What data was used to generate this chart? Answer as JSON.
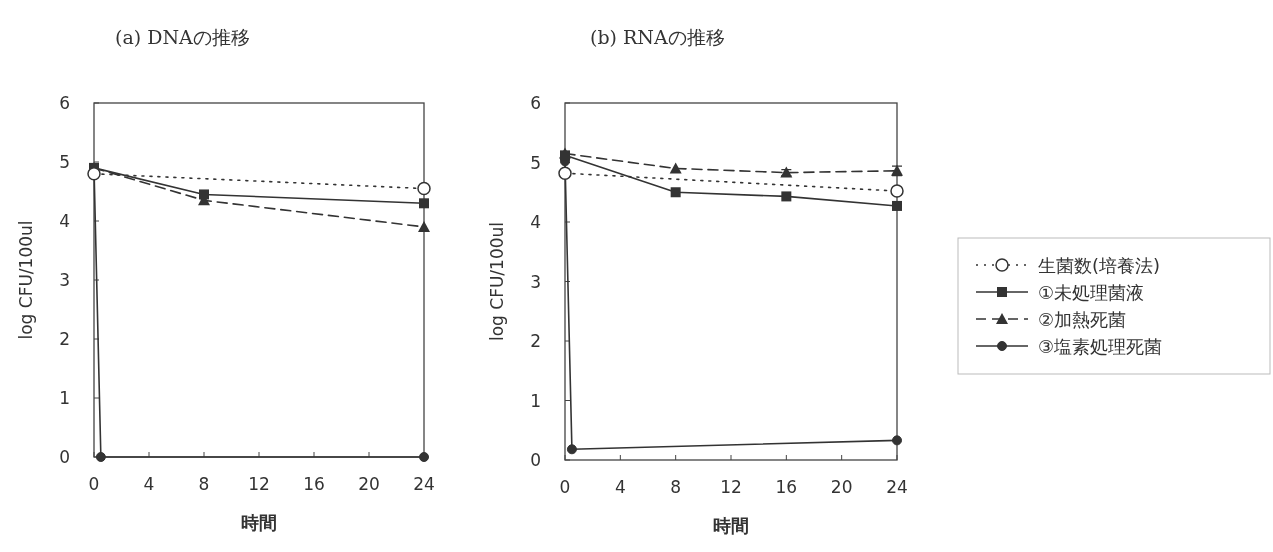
{
  "chart_data": [
    {
      "type": "line",
      "title": "(a) DNAの推移",
      "xlabel": "時間",
      "ylabel": "log CFU/100ul",
      "xlim": [
        0,
        24
      ],
      "ylim": [
        0,
        6
      ],
      "xticks": [
        0,
        4,
        8,
        12,
        16,
        20,
        24
      ],
      "yticks": [
        0,
        1,
        2,
        3,
        4,
        5,
        6
      ],
      "grid": false,
      "legend": false,
      "series": [
        {
          "color": "#333333",
          "marker": "circle-open",
          "line_style": "dotted",
          "x": [
            0,
            24
          ],
          "values": [
            4.8,
            4.55
          ]
        },
        {
          "color": "#333333",
          "marker": "square",
          "line_style": "solid",
          "x": [
            0,
            8,
            24
          ],
          "values": [
            4.9,
            4.45,
            4.3
          ]
        },
        {
          "color": "#333333",
          "marker": "triangle",
          "line_style": "dashed",
          "x": [
            0,
            8,
            24
          ],
          "values": [
            4.9,
            4.35,
            3.9
          ]
        },
        {
          "color": "#333333",
          "marker": "circle",
          "line_style": "solid",
          "x": [
            0,
            0.5,
            24
          ],
          "values": [
            4.9,
            0,
            0
          ]
        }
      ]
    },
    {
      "type": "line",
      "title": "(b) RNAの推移",
      "xlabel": "時間",
      "ylabel": "log CFU/100ul",
      "xlim": [
        0,
        24
      ],
      "ylim": [
        0,
        6
      ],
      "xticks": [
        0,
        4,
        8,
        12,
        16,
        20,
        24
      ],
      "yticks": [
        0,
        1,
        2,
        3,
        4,
        5,
        6
      ],
      "grid": false,
      "legend": "right",
      "series": [
        {
          "name": "生菌数(培養法)",
          "color": "#333333",
          "marker": "circle-open",
          "line_style": "dotted",
          "x": [
            0,
            24
          ],
          "values": [
            4.82,
            4.52
          ]
        },
        {
          "name": "①未処理菌液",
          "color": "#333333",
          "marker": "square",
          "line_style": "solid",
          "x": [
            0,
            8,
            16,
            24
          ],
          "values": [
            5.12,
            4.5,
            4.43,
            4.27
          ]
        },
        {
          "name": "②加熱死菌",
          "color": "#333333",
          "marker": "triangle",
          "line_style": "dashed",
          "x": [
            0,
            8,
            16,
            24
          ],
          "values": [
            5.15,
            4.9,
            4.83,
            4.86
          ],
          "errors": [
            null,
            null,
            0.05,
            0.08
          ]
        },
        {
          "name": "③塩素処理死菌",
          "color": "#333333",
          "marker": "circle",
          "line_style": "solid",
          "x": [
            0,
            0.5,
            24
          ],
          "values": [
            5.02,
            0.18,
            0.33
          ]
        }
      ]
    }
  ]
}
